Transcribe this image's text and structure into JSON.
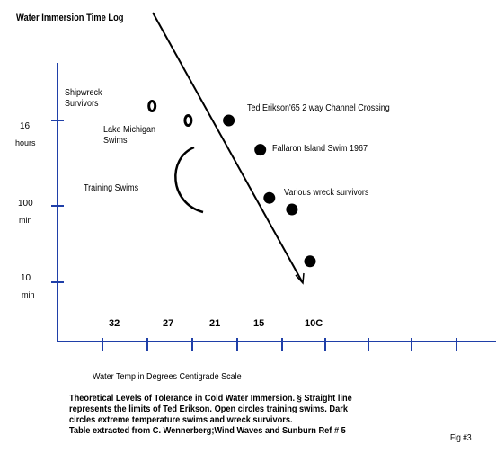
{
  "title": "Water Immersion Time Log",
  "chart_data": {
    "type": "scatter",
    "title": "Water Immersion Time Log",
    "xlabel": "Water Temp in Degrees Centigrade Scale",
    "ylabel": "",
    "x_tick_labels": [
      "32",
      "27",
      "21",
      "15",
      "10C"
    ],
    "y_ticks": [
      {
        "value": "16",
        "unit": "hours"
      },
      {
        "value": "100",
        "unit": "min"
      },
      {
        "value": "10",
        "unit": "min"
      }
    ],
    "annotations": {
      "shipwreck": "Shipwreck Survivors",
      "lake_michigan": "Lake Michigan Swims",
      "training": "Training Swims",
      "erikson": "Ted Erikson'65 2 way Channel Crossing",
      "fallaron": "Fallaron Island Swim 1967",
      "wreck": "Various wreck survivors"
    },
    "series": [
      {
        "marker": "open-circle",
        "points": [
          {
            "x": 28,
            "y_hours": 24
          },
          {
            "x": 24,
            "y_hours": 16
          }
        ]
      },
      {
        "marker": "filled-circle",
        "points": [
          {
            "x": 19.5,
            "y_hours": 16
          },
          {
            "x": 16,
            "y_hours": 7
          },
          {
            "x": 15,
            "y_hours": 1.8
          },
          {
            "x": 12.5,
            "y_hours": 1.3
          },
          {
            "x": 10.5,
            "y_hours": 0.3
          }
        ]
      }
    ],
    "limit_line": "Ted Erikson limit (straight line)",
    "x_order": "descending",
    "y_scale": "log",
    "grid": false,
    "legend": "none"
  },
  "caption_lines": [
    "Theoretical Levels of Tolerance in Cold Water Immersion. § Straight line",
    "represents the limits of Ted Erikson. Open  circles training swims. Dark",
    "circles extreme temperature swims and wreck survivors.",
    "Table extracted from C. Wennerberg;Wind Waves and Sunburn Ref # 5"
  ],
  "figure_label": "Fig #3",
  "colors": {
    "axis": "#1f3fa8",
    "line": "#000000",
    "marker": "#000000",
    "background": "#ffffff"
  }
}
